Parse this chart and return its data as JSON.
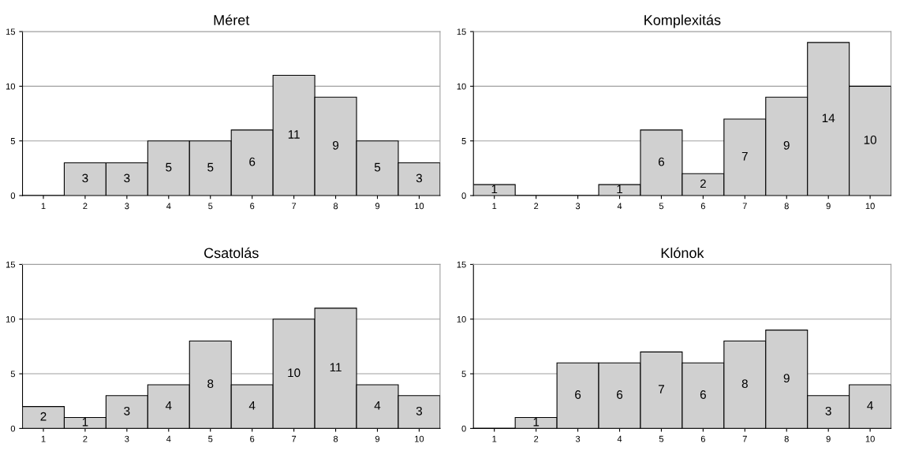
{
  "chart_data": [
    {
      "type": "bar",
      "title": "Méret",
      "categories": [
        "1",
        "2",
        "3",
        "4",
        "5",
        "6",
        "7",
        "8",
        "9",
        "10"
      ],
      "values": [
        0,
        3,
        3,
        5,
        5,
        6,
        11,
        9,
        5,
        3
      ],
      "value_labels": [
        null,
        "3",
        "3",
        "5",
        "5",
        "6",
        "11",
        "9",
        "5",
        "3"
      ],
      "color": "#d0d0d0",
      "ylim": [
        0,
        15
      ],
      "yticks": [
        0,
        5,
        10,
        15
      ],
      "grid": "y"
    },
    {
      "type": "bar",
      "title": "Komplexitás",
      "categories": [
        "1",
        "2",
        "3",
        "4",
        "5",
        "6",
        "7",
        "8",
        "9",
        "10"
      ],
      "values": [
        1,
        0,
        0,
        1,
        6,
        2,
        7,
        9,
        14,
        10
      ],
      "value_labels": [
        "1",
        null,
        null,
        "1",
        "6",
        "2",
        "7",
        "9",
        "14",
        "10"
      ],
      "color": "#d0d0d0",
      "ylim": [
        0,
        15
      ],
      "yticks": [
        0,
        5,
        10,
        15
      ],
      "grid": "y"
    },
    {
      "type": "bar",
      "title": "Csatolás",
      "categories": [
        "1",
        "2",
        "3",
        "4",
        "5",
        "6",
        "7",
        "8",
        "9",
        "10"
      ],
      "values": [
        2,
        1,
        3,
        4,
        8,
        4,
        10,
        11,
        4,
        3
      ],
      "value_labels": [
        "2",
        "1",
        "3",
        "4",
        "8",
        "4",
        "10",
        "11",
        "4",
        "3"
      ],
      "color": "#d0d0d0",
      "ylim": [
        0,
        15
      ],
      "yticks": [
        0,
        5,
        10,
        15
      ],
      "grid": "y"
    },
    {
      "type": "bar",
      "title": "Klónok",
      "categories": [
        "1",
        "2",
        "3",
        "4",
        "5",
        "6",
        "7",
        "8",
        "9",
        "10"
      ],
      "values": [
        0,
        1,
        6,
        6,
        7,
        6,
        8,
        9,
        3,
        4
      ],
      "value_labels": [
        null,
        "1",
        "6",
        "6",
        "7",
        "6",
        "8",
        "9",
        "3",
        "4"
      ],
      "color": "#d0d0d0",
      "ylim": [
        0,
        15
      ],
      "yticks": [
        0,
        5,
        10,
        15
      ],
      "grid": "y"
    }
  ]
}
